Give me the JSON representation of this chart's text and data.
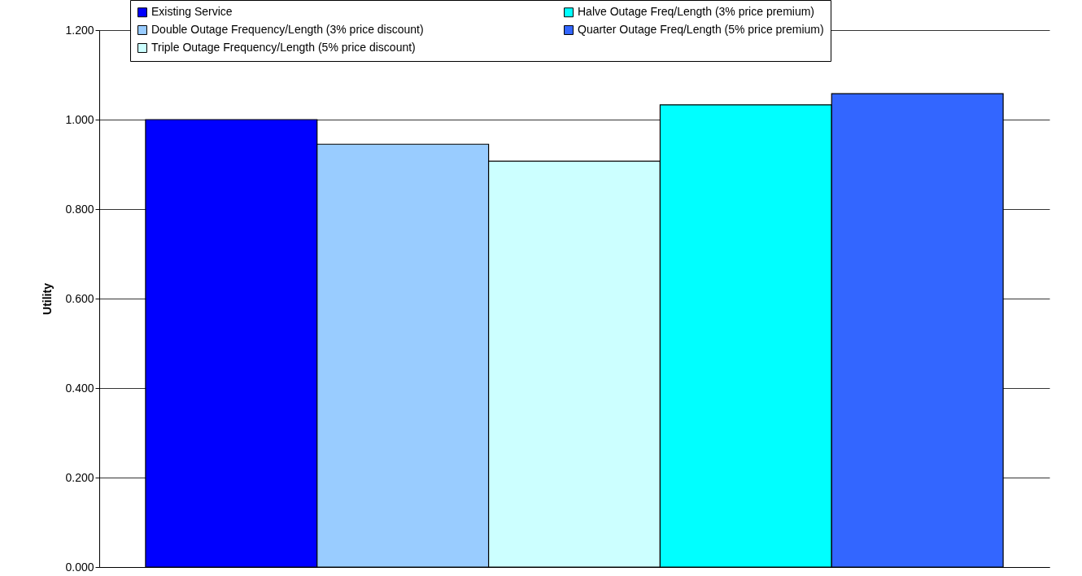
{
  "chart_data": {
    "type": "bar",
    "ylabel": "Utility",
    "categories": [
      null
    ],
    "series": [
      {
        "name": "Existing Service",
        "color": "#0000ff",
        "values": [
          1.0
        ]
      },
      {
        "name": "Double Outage Frequency/Length (3% price discount)",
        "color": "#99ccff",
        "values": [
          0.945
        ]
      },
      {
        "name": "Triple Outage Frequency/Length (5% price discount)",
        "color": "#ccffff",
        "values": [
          0.907
        ]
      },
      {
        "name": "Halve Outage Freq/Length (3% price premium)",
        "color": "#00ffff",
        "values": [
          1.033
        ]
      },
      {
        "name": "Quarter Outage Freq/Length (5% price premium)",
        "color": "#3366ff",
        "values": [
          1.058
        ]
      }
    ],
    "ylim": [
      0,
      1.2
    ],
    "yticks": [
      {
        "value": 0,
        "label": "0.000"
      },
      {
        "value": 0.2,
        "label": "0.200"
      },
      {
        "value": 0.4,
        "label": "0.400"
      },
      {
        "value": 0.6,
        "label": "0.600"
      },
      {
        "value": 0.8,
        "label": "0.800"
      },
      {
        "value": 1,
        "label": "1.000"
      },
      {
        "value": 1.2,
        "label": "1.200"
      }
    ],
    "grid": "y",
    "legend": "top"
  }
}
